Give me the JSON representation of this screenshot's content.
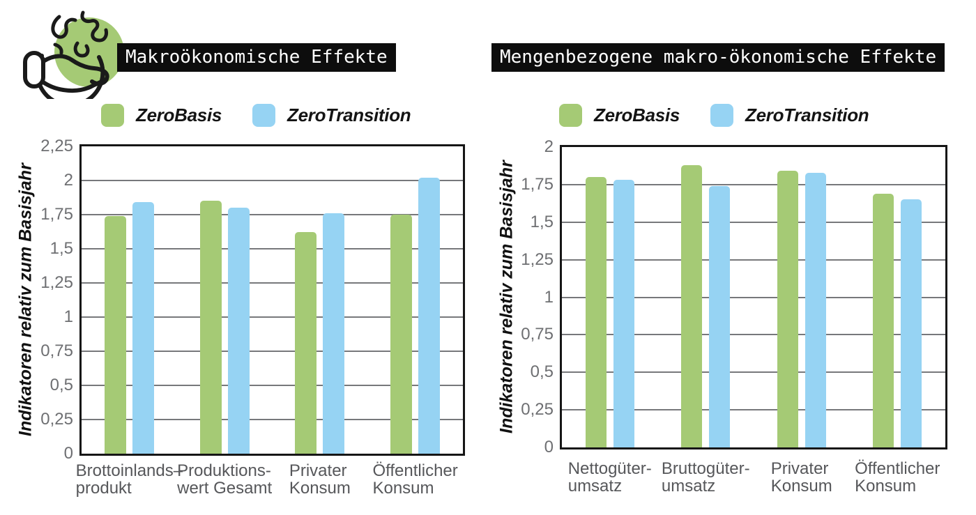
{
  "page": {
    "background": "#ffffff",
    "icon": {
      "name": "hand-holding-earth-icon",
      "accent_color": "#a5ca75",
      "outline_color": "#1a1a1a"
    }
  },
  "style_colors": {
    "grid": "#77787b",
    "axis_border": "#161616",
    "tick_label": "#6e6f72",
    "category_label": "#56575a",
    "title_bg": "#0d0d0d",
    "title_fg": "#ffffff",
    "series_green": "#a5ca75",
    "series_blue": "#96d3f3"
  },
  "chart_data": [
    {
      "type": "bar",
      "title": "Makroökonomische Effekte",
      "ylabel": "Indikatoren relativ zum Basisjahr",
      "ylim": [
        0,
        2.25
      ],
      "ytick_step": 0.25,
      "ytick_labels": [
        "0",
        "0,25",
        "0,5",
        "0,75",
        "1",
        "1,25",
        "1,5",
        "1,75",
        "2",
        "2,25"
      ],
      "grid": true,
      "legend_position": "top",
      "categories": [
        "Brottoinlands–produkt",
        "Produktions-wert Gesamt",
        "Privater Konsum",
        "Öffentlicher Konsum"
      ],
      "categories_display": [
        [
          "Brottoinlands–",
          "produkt"
        ],
        [
          "Produktions-",
          "wert Gesamt"
        ],
        [
          "Privater",
          "Konsum"
        ],
        [
          "Öffentlicher",
          "Konsum"
        ]
      ],
      "series": [
        {
          "name": "ZeroBasis",
          "color": "#a5ca75",
          "values": [
            1.74,
            1.85,
            1.62,
            1.75
          ]
        },
        {
          "name": "ZeroTransition",
          "color": "#96d3f3",
          "values": [
            1.84,
            1.8,
            1.76,
            2.02
          ]
        }
      ]
    },
    {
      "type": "bar",
      "title": "Mengenbezogene makro-ökonomische Effekte",
      "ylabel": "Indikatoren relativ zum Basisjahr",
      "ylim": [
        0,
        2
      ],
      "ytick_step": 0.25,
      "ytick_labels": [
        "0",
        "0,25",
        "0,5",
        "0,75",
        "1",
        "1,25",
        "1,5",
        "1,75",
        "2"
      ],
      "grid": true,
      "legend_position": "top",
      "categories": [
        "Nettogüter-umsatz",
        "Bruttogüter-umsatz",
        "Privater Konsum",
        "Öffentlicher Konsum"
      ],
      "categories_display": [
        [
          "Nettogüter-",
          "umsatz"
        ],
        [
          "Bruttogüter-",
          "umsatz"
        ],
        [
          "Privater",
          "Konsum"
        ],
        [
          "Öffentlicher",
          "Konsum"
        ]
      ],
      "series": [
        {
          "name": "ZeroBasis",
          "color": "#a5ca75",
          "values": [
            1.8,
            1.88,
            1.84,
            1.69
          ]
        },
        {
          "name": "ZeroTransition",
          "color": "#96d3f3",
          "values": [
            1.78,
            1.74,
            1.83,
            1.65
          ]
        }
      ]
    }
  ]
}
